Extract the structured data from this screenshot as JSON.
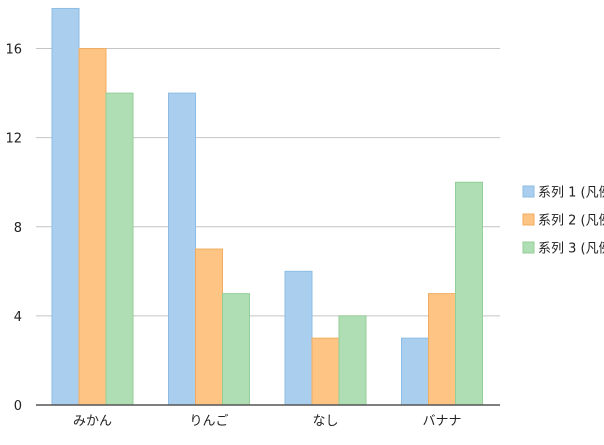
{
  "chart_data": {
    "type": "bar",
    "categories": [
      "みかん",
      "りんご",
      "なし",
      "バナナ"
    ],
    "series": [
      {
        "name": "系列 1 (凡例",
        "values": [
          17.8,
          14,
          6,
          3
        ],
        "color": "#aacfee",
        "stroke": "#8cbde6"
      },
      {
        "name": "系列 2 (凡例",
        "values": [
          16,
          7,
          3,
          5
        ],
        "color": "#fdc484",
        "stroke": "#f0ad62"
      },
      {
        "name": "系列 3 (凡例",
        "values": [
          14,
          5,
          4,
          10
        ],
        "color": "#b0deb4",
        "stroke": "#94cf99"
      }
    ],
    "ylim": [
      0,
      18
    ],
    "yticks": [
      0,
      4,
      8,
      12,
      16
    ],
    "grid": true,
    "legend_position": "right",
    "title": "",
    "xlabel": "",
    "ylabel": ""
  },
  "colors": {
    "grid": "#c4c4c4",
    "axis": "#555555",
    "background": "#ffffff"
  }
}
